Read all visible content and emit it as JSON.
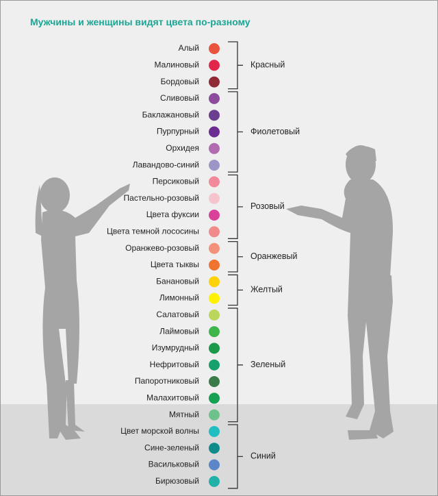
{
  "title": "Мужчины и женщины видят цвета по-разному",
  "groups": [
    {
      "label": "Красный",
      "items": [
        {
          "name": "Алый",
          "color": "#e9543e"
        },
        {
          "name": "Малиновый",
          "color": "#e1264b"
        },
        {
          "name": "Бордовый",
          "color": "#8e2b36"
        }
      ]
    },
    {
      "label": "Фиолетовый",
      "items": [
        {
          "name": "Сливовый",
          "color": "#8d4b9d"
        },
        {
          "name": "Баклажановый",
          "color": "#6b3f8f"
        },
        {
          "name": "Пурпурный",
          "color": "#6c2d92"
        },
        {
          "name": "Орхидея",
          "color": "#b16caf"
        },
        {
          "name": "Лавандово-синий",
          "color": "#9c95c7"
        }
      ]
    },
    {
      "label": "Розовый",
      "items": [
        {
          "name": "Персиковый",
          "color": "#f1899a"
        },
        {
          "name": "Пастельно-розовый",
          "color": "#f6c4cd"
        },
        {
          "name": "Цвета фуксии",
          "color": "#d9419b"
        },
        {
          "name": "Цвета темной лососины",
          "color": "#f18b8b"
        }
      ]
    },
    {
      "label": "Оранжевый",
      "items": [
        {
          "name": "Оранжево-розовый",
          "color": "#f4917a"
        },
        {
          "name": "Цвета тыквы",
          "color": "#f17330"
        }
      ]
    },
    {
      "label": "Желтый",
      "items": [
        {
          "name": "Банановый",
          "color": "#fdd20b"
        },
        {
          "name": "Лимонный",
          "color": "#fff200"
        }
      ]
    },
    {
      "label": "Зеленый",
      "items": [
        {
          "name": "Салатовый",
          "color": "#bad75b"
        },
        {
          "name": "Лаймовый",
          "color": "#3db54a"
        },
        {
          "name": "Изумрудный",
          "color": "#1b9a4b"
        },
        {
          "name": "Нефритовый",
          "color": "#16a06b"
        },
        {
          "name": "Папоротниковый",
          "color": "#3b7a49"
        },
        {
          "name": "Малахитовый",
          "color": "#15a151"
        },
        {
          "name": "Мятный",
          "color": "#6dc18b"
        }
      ]
    },
    {
      "label": "Синий",
      "items": [
        {
          "name": "Цвет морской волны",
          "color": "#20bdc1"
        },
        {
          "name": "Сине-зеленый",
          "color": "#0f8b8b"
        },
        {
          "name": "Васильковый",
          "color": "#5b86c7"
        },
        {
          "name": "Бирюзовый",
          "color": "#21b1a9"
        }
      ]
    }
  ]
}
